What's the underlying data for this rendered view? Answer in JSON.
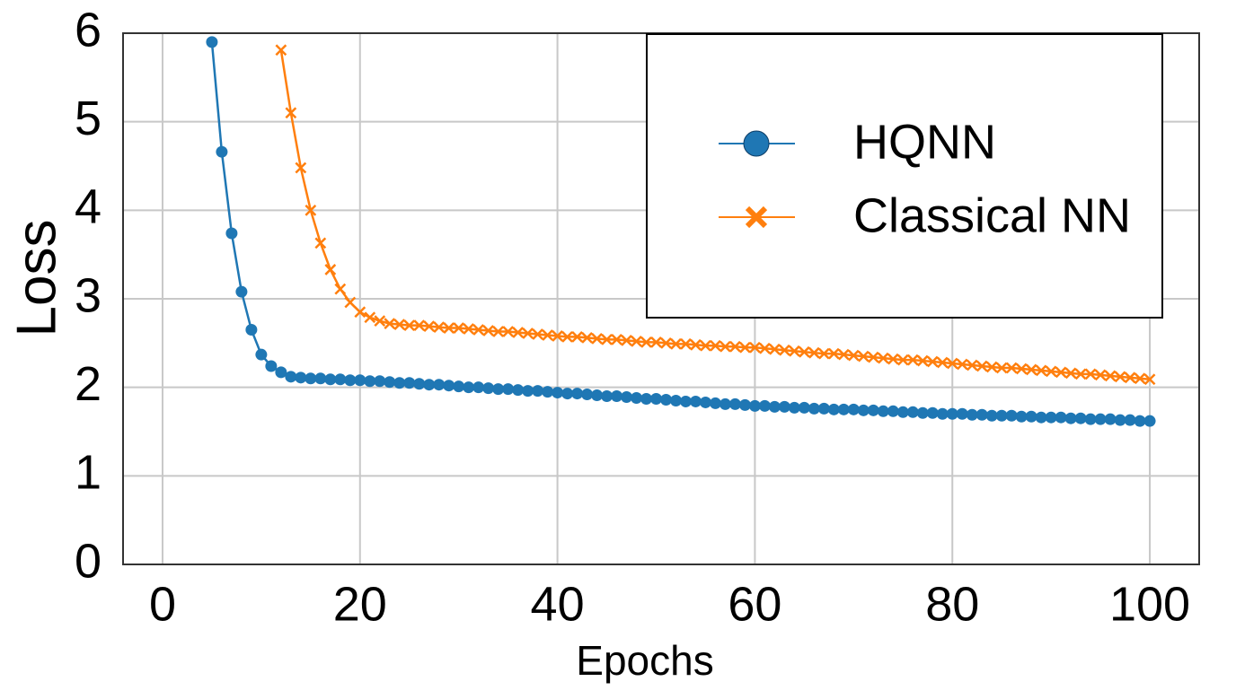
{
  "chart_data": {
    "type": "line",
    "x_label": "Epochs",
    "y_label": "Loss",
    "x": [
      1,
      2,
      3,
      4,
      5,
      6,
      7,
      8,
      9,
      10,
      11,
      12,
      13,
      14,
      15,
      16,
      17,
      18,
      19,
      20,
      21,
      22,
      23,
      24,
      25,
      26,
      27,
      28,
      29,
      30,
      31,
      32,
      33,
      34,
      35,
      36,
      37,
      38,
      39,
      40,
      41,
      42,
      43,
      44,
      45,
      46,
      47,
      48,
      49,
      50,
      51,
      52,
      53,
      54,
      55,
      56,
      57,
      58,
      59,
      60,
      61,
      62,
      63,
      64,
      65,
      66,
      67,
      68,
      69,
      70,
      71,
      72,
      73,
      74,
      75,
      76,
      77,
      78,
      79,
      80,
      81,
      82,
      83,
      84,
      85,
      86,
      87,
      88,
      89,
      90,
      91,
      92,
      93,
      94,
      95,
      96,
      97,
      98,
      99,
      100
    ],
    "series": [
      {
        "name": "HQNN",
        "color": "#1f77b4",
        "marker": "o",
        "values": [
          null,
          null,
          null,
          null,
          5.9,
          4.66,
          3.74,
          3.08,
          2.65,
          2.37,
          2.24,
          2.17,
          2.12,
          2.11,
          2.1,
          2.1,
          2.09,
          2.09,
          2.08,
          2.08,
          2.07,
          2.07,
          2.06,
          2.05,
          2.05,
          2.04,
          2.03,
          2.03,
          2.02,
          2.01,
          2.0,
          2.0,
          1.99,
          1.98,
          1.98,
          1.97,
          1.96,
          1.96,
          1.95,
          1.94,
          1.93,
          1.93,
          1.92,
          1.91,
          1.9,
          1.9,
          1.89,
          1.88,
          1.87,
          1.87,
          1.86,
          1.85,
          1.84,
          1.84,
          1.83,
          1.82,
          1.81,
          1.81,
          1.8,
          1.79,
          1.79,
          1.78,
          1.78,
          1.77,
          1.77,
          1.76,
          1.76,
          1.75,
          1.75,
          1.75,
          1.74,
          1.74,
          1.73,
          1.73,
          1.72,
          1.72,
          1.71,
          1.71,
          1.7,
          1.7,
          1.7,
          1.69,
          1.69,
          1.68,
          1.68,
          1.68,
          1.67,
          1.67,
          1.66,
          1.66,
          1.66,
          1.65,
          1.65,
          1.64,
          1.64,
          1.64,
          1.63,
          1.63,
          1.62,
          1.62
        ]
      },
      {
        "name": "Classical NN",
        "color": "#ff7f0e",
        "marker": "x",
        "values": [
          null,
          null,
          null,
          null,
          null,
          null,
          null,
          null,
          null,
          null,
          null,
          5.81,
          5.1,
          4.48,
          4.0,
          3.63,
          3.33,
          3.11,
          2.96,
          2.85,
          2.79,
          2.75,
          2.72,
          2.71,
          2.7,
          2.7,
          2.69,
          2.68,
          2.67,
          2.67,
          2.66,
          2.65,
          2.64,
          2.63,
          2.63,
          2.62,
          2.61,
          2.6,
          2.59,
          2.58,
          2.57,
          2.57,
          2.56,
          2.55,
          2.54,
          2.54,
          2.53,
          2.52,
          2.51,
          2.51,
          2.5,
          2.49,
          2.49,
          2.48,
          2.47,
          2.47,
          2.46,
          2.46,
          2.45,
          2.45,
          2.44,
          2.43,
          2.42,
          2.41,
          2.4,
          2.39,
          2.38,
          2.38,
          2.37,
          2.36,
          2.35,
          2.34,
          2.33,
          2.32,
          2.31,
          2.31,
          2.3,
          2.29,
          2.28,
          2.27,
          2.26,
          2.25,
          2.24,
          2.23,
          2.22,
          2.22,
          2.21,
          2.2,
          2.19,
          2.18,
          2.17,
          2.16,
          2.15,
          2.15,
          2.14,
          2.13,
          2.12,
          2.11,
          2.1,
          2.09
        ]
      }
    ],
    "xlim": [
      -4,
      105
    ],
    "xticks": [
      0,
      20,
      40,
      60,
      80,
      100
    ],
    "ylim": [
      0,
      6
    ],
    "yticks": [
      0,
      1,
      2,
      3,
      4,
      5,
      6
    ],
    "grid": true,
    "legend": "upper right"
  }
}
